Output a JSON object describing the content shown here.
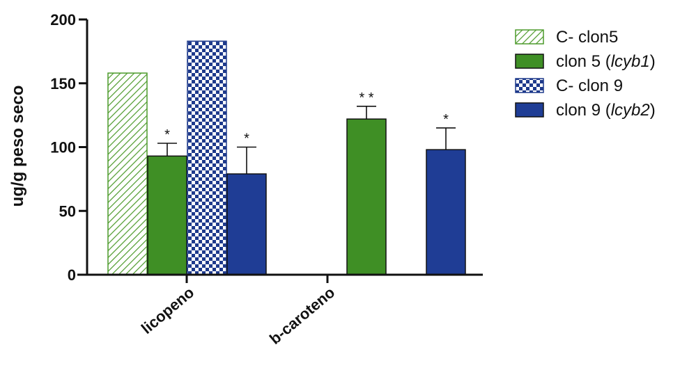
{
  "chart_data": {
    "type": "bar",
    "ylabel": "ug/g peso seco",
    "ylim": [
      0,
      200
    ],
    "yticks": [
      0,
      50,
      100,
      150,
      200
    ],
    "categories": [
      "licopeno",
      "b-caroteno"
    ],
    "grid": false,
    "legend_position": "top-right",
    "series": [
      {
        "name": "C- clon5",
        "name_suffix": "",
        "values": [
          158,
          null
        ],
        "errors": [
          null,
          null
        ],
        "significance": [
          "",
          ""
        ],
        "fill_pattern": "diagonal-hatch",
        "color": "#4c9a2a"
      },
      {
        "name": "clon 5 (",
        "name_suffix": ")",
        "name_italic": "lcyb1",
        "values": [
          93,
          122
        ],
        "errors": [
          10,
          10
        ],
        "significance": [
          "*",
          "* *"
        ],
        "fill_pattern": "solid",
        "color": "#3f8f25"
      },
      {
        "name": "C- clon 9",
        "name_suffix": "",
        "values": [
          183,
          null
        ],
        "errors": [
          null,
          null
        ],
        "significance": [
          "",
          ""
        ],
        "fill_pattern": "checkerboard",
        "color": "#1e3a8c"
      },
      {
        "name": "clon 9 (",
        "name_suffix": ")",
        "name_italic": "lcyb2",
        "values": [
          79,
          98
        ],
        "errors": [
          21,
          17
        ],
        "significance": [
          "*",
          "*"
        ],
        "fill_pattern": "solid",
        "color": "#1f3d95"
      }
    ]
  }
}
